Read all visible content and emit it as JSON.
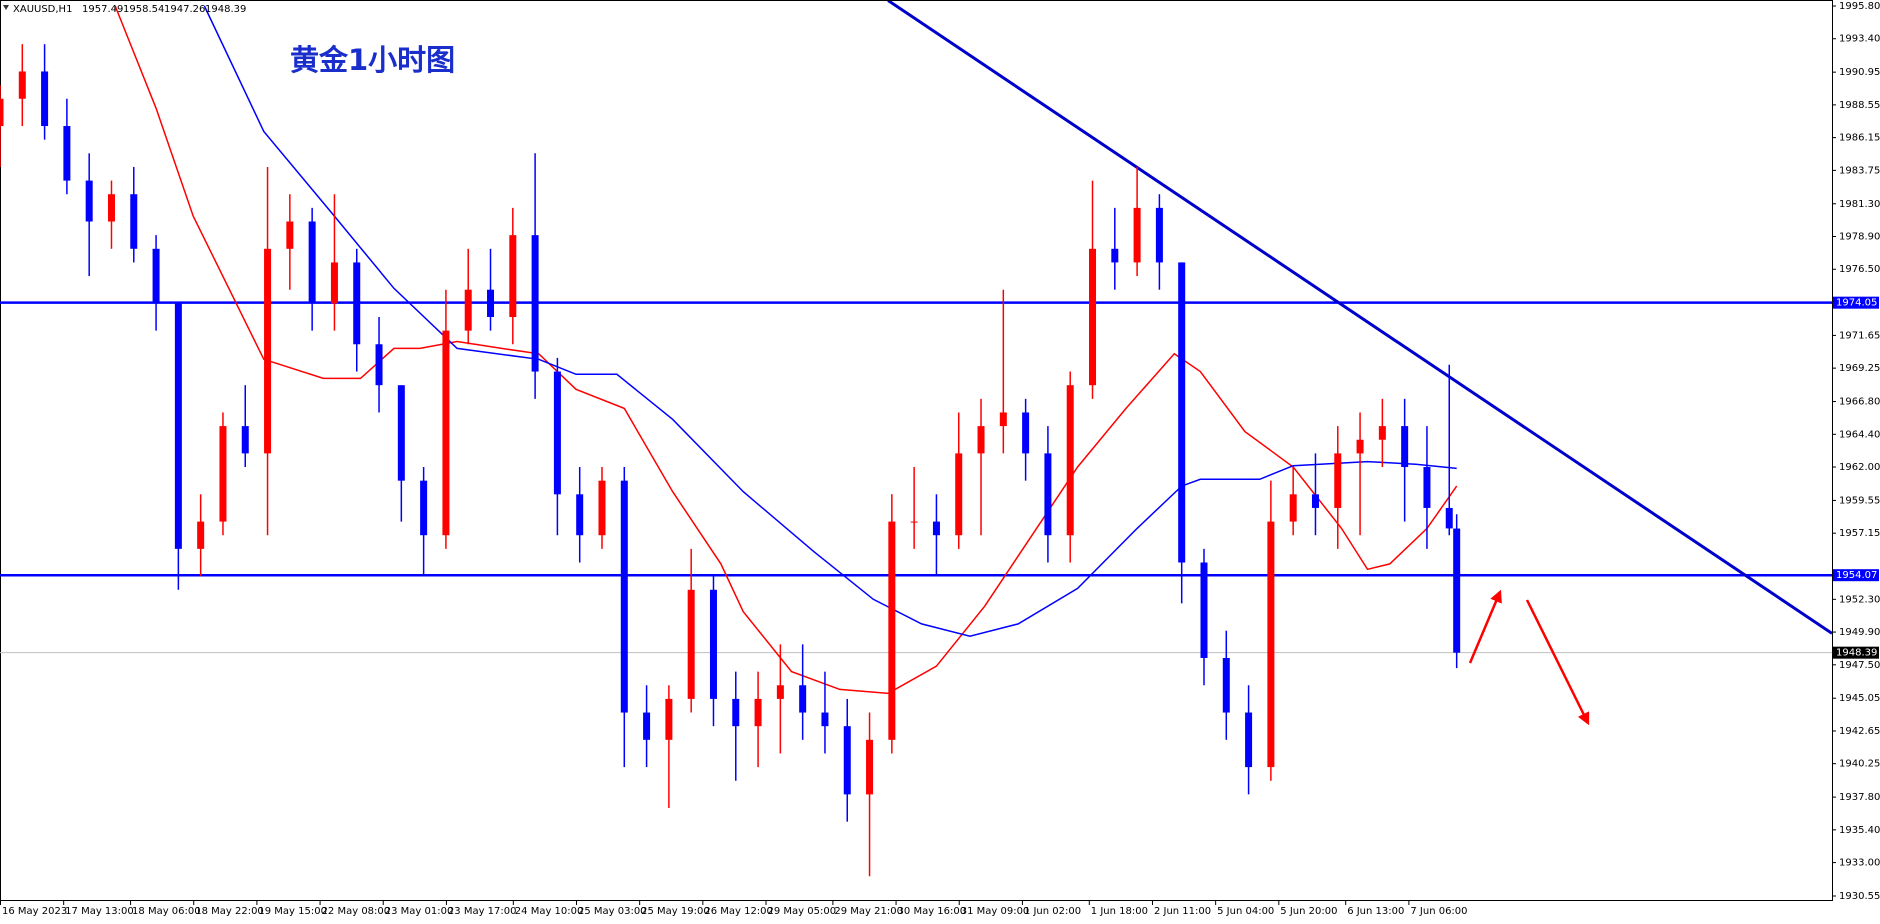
{
  "chart_data": {
    "type": "candlestick",
    "symbol": "XAUUSD,H1",
    "title": "黄金1小时图",
    "up_color": "#ff0000",
    "down_color": "#0000ff",
    "xlim": [
      0,
      493
    ],
    "ylim": [
      1930.55,
      1995.8
    ],
    "xticks": [
      {
        "value": 0,
        "label": "16 May 2023"
      },
      {
        "value": 17,
        "label": "17 May 13:00"
      },
      {
        "value": 35,
        "label": "18 May 06:00"
      },
      {
        "value": 52,
        "label": "18 May 22:00"
      },
      {
        "value": 69,
        "label": "19 May 15:00"
      },
      {
        "value": 86,
        "label": "22 May 08:00"
      },
      {
        "value": 103,
        "label": "23 May 01:00"
      },
      {
        "value": 120,
        "label": "23 May 17:00"
      },
      {
        "value": 138,
        "label": "24 May 10:00"
      },
      {
        "value": 155,
        "label": "25 May 03:00"
      },
      {
        "value": 172,
        "label": "25 May 19:00"
      },
      {
        "value": 189,
        "label": "26 May 12:00"
      },
      {
        "value": 206,
        "label": "29 May 05:00"
      },
      {
        "value": 224,
        "label": "29 May 21:00"
      },
      {
        "value": 241,
        "label": "30 May 16:00"
      },
      {
        "value": 258,
        "label": "31 May 09:00"
      },
      {
        "value": 275,
        "label": "1 Jun 02:00"
      },
      {
        "value": 293,
        "label": "1 Jun 18:00"
      },
      {
        "value": 310,
        "label": "2 Jun 11:00"
      },
      {
        "value": 327,
        "label": "5 Jun 04:00"
      },
      {
        "value": 344,
        "label": "5 Jun 20:00"
      },
      {
        "value": 362,
        "label": "6 Jun 13:00"
      },
      {
        "value": 379,
        "label": "7 Jun 06:00"
      }
    ],
    "yticks": [
      {
        "value": 1995.8,
        "label": "1995.80"
      },
      {
        "value": 1993.4,
        "label": "1993.40"
      },
      1990.95,
      1988.55,
      1986.15,
      1983.75,
      {
        "value": 1981.3,
        "label": "1981.30"
      },
      {
        "value": 1978.9,
        "label": "1978.90"
      },
      {
        "value": 1976.5,
        "label": "1976.50"
      },
      1971.65,
      1969.25,
      {
        "value": 1966.8,
        "label": "1966.80"
      },
      {
        "value": 1964.4,
        "label": "1964.40"
      },
      {
        "value": 1962,
        "label": "1962.00"
      },
      1959.55,
      1957.15,
      {
        "value": 1952.3,
        "label": "1952.30"
      },
      {
        "value": 1949.9,
        "label": "1949.90"
      },
      {
        "value": 1947.5,
        "label": "1947.50"
      },
      1945.05,
      1942.65,
      1940.25,
      {
        "value": 1937.8,
        "label": "1937.80"
      },
      {
        "value": 1935.4,
        "label": "1935.40"
      },
      {
        "value": 1933,
        "label": "1933.00"
      },
      1930.55
    ],
    "candles": {
      "x": [
        0,
        6,
        12,
        18,
        24,
        30,
        36,
        42,
        48,
        54,
        60,
        66,
        72,
        78,
        84,
        90,
        96,
        102,
        108,
        114,
        120,
        126,
        132,
        138,
        144,
        150,
        156,
        162,
        168,
        174,
        180,
        186,
        192,
        198,
        204,
        210,
        216,
        222,
        228,
        234,
        240,
        246,
        252,
        258,
        264,
        270,
        276,
        282,
        288,
        294,
        300,
        306,
        312,
        318,
        324,
        330,
        336,
        342,
        348,
        354,
        360,
        366,
        372,
        378,
        384,
        390,
        392
      ],
      "open": [
        1987,
        1989,
        1991,
        1987,
        1983,
        1980,
        1982,
        1978,
        1974,
        1956,
        1958,
        1965,
        1963,
        1978,
        1980,
        1974,
        1977,
        1971,
        1968,
        1961,
        1957,
        1972,
        1975,
        1973,
        1979,
        1969,
        1960,
        1957,
        1961,
        1944,
        1942,
        1945,
        1953,
        1945,
        1943,
        1945,
        1946,
        1944,
        1943,
        1938,
        1942,
        1958,
        1958,
        1957,
        1963,
        1965,
        1966,
        1963,
        1957,
        1968,
        1978,
        1977,
        1981,
        1977,
        1955,
        1948,
        1944,
        1940,
        1958,
        1960,
        1959,
        1963,
        1964,
        1965,
        1962,
        1959,
        1957.49
      ],
      "high": [
        1990,
        1993,
        1993,
        1989,
        1985,
        1983,
        1984,
        1979,
        1974,
        1960,
        1966,
        1968,
        1984,
        1982,
        1981,
        1982,
        1978,
        1973,
        1968,
        1962,
        1975,
        1978,
        1978,
        1981,
        1985,
        1970,
        1962,
        1962,
        1962,
        1946,
        1946,
        1956,
        1954,
        1947,
        1947,
        1949,
        1949,
        1947,
        1945,
        1944,
        1960,
        1962,
        1960,
        1966,
        1967,
        1975,
        1967,
        1965,
        1969,
        1983,
        1981,
        1984,
        1982,
        1977,
        1956,
        1950,
        1946,
        1961,
        1962,
        1963,
        1965,
        1966,
        1967,
        1967,
        1965,
        1969.5,
        1958.54
      ],
      "low": [
        1984,
        1987,
        1986,
        1982,
        1976,
        1978,
        1977,
        1972,
        1953,
        1954,
        1957,
        1962,
        1957,
        1975,
        1972,
        1972,
        1969,
        1966,
        1958,
        1954,
        1956,
        1971,
        1972,
        1971,
        1967,
        1957,
        1955,
        1956,
        1940,
        1940,
        1937,
        1944,
        1943,
        1939,
        1940,
        1941,
        1942,
        1941,
        1936,
        1932,
        1941,
        1956,
        1954,
        1956,
        1957,
        1963,
        1961,
        1955,
        1955,
        1967,
        1975,
        1976,
        1975,
        1952,
        1946,
        1942,
        1938,
        1939,
        1957,
        1957,
        1956,
        1957,
        1962,
        1958,
        1956,
        1957,
        1947.26
      ],
      "close": [
        1989,
        1991,
        1987,
        1983,
        1980,
        1982,
        1978,
        1974,
        1956,
        1958,
        1965,
        1963,
        1978,
        1980,
        1974,
        1977,
        1971,
        1968,
        1961,
        1957,
        1972,
        1975,
        1973,
        1979,
        1969,
        1960,
        1957,
        1961,
        1944,
        1942,
        1945,
        1953,
        1945,
        1943,
        1945,
        1946,
        1944,
        1943,
        1938,
        1942,
        1958,
        1958,
        1957,
        1963,
        1965,
        1966,
        1963,
        1957,
        1968,
        1978,
        1977,
        1981,
        1977,
        1955,
        1948,
        1944,
        1940,
        1958,
        1960,
        1959,
        1963,
        1964,
        1965,
        1962,
        1959,
        1957.5,
        1948.39
      ]
    },
    "series": [
      {
        "color": "#ff0000",
        "x": [
          31,
          42,
          52,
          71,
          87,
          97,
          106,
          113,
          123,
          135,
          145,
          155,
          168,
          181,
          194,
          200,
          213,
          226,
          239,
          252,
          265,
          277,
          290,
          303,
          316,
          323,
          335,
          348,
          361,
          368,
          374,
          384,
          392
        ],
        "values": [
          1995.8,
          1988.3,
          1980.4,
          1969.9,
          1968.5,
          1968.5,
          1970.7,
          1970.7,
          1971.2,
          1970.7,
          1970.3,
          1967.7,
          1966.3,
          1960.2,
          1954.9,
          1951.4,
          1947.0,
          1945.7,
          1945.4,
          1947.4,
          1951.8,
          1956.7,
          1962.0,
          1966.3,
          1970.3,
          1969.0,
          1964.6,
          1962.0,
          1957.5,
          1954.5,
          1954.9,
          1957.5,
          1960.6
        ]
      },
      {
        "color": "#0000ff",
        "x": [
          55,
          71,
          90,
          106,
          123,
          145,
          155,
          166,
          181,
          200,
          219,
          235,
          248,
          261,
          274,
          290,
          306,
          318,
          323,
          339,
          348,
          368,
          381,
          392
        ],
        "values": [
          1995.8,
          1986.6,
          1980.4,
          1975.1,
          1970.7,
          1969.9,
          1968.8,
          1968.8,
          1965.5,
          1960.2,
          1955.8,
          1952.3,
          1950.5,
          1949.6,
          1950.5,
          1953.1,
          1957.5,
          1960.6,
          1961.1,
          1961.1,
          1962.1,
          1962.4,
          1962.2,
          1961.9
        ]
      }
    ],
    "trendlines": [
      {
        "color": "#0000cd",
        "x": [
          239,
          493
        ],
        "values": [
          1996.2,
          1949.8
        ]
      }
    ],
    "hlines": [
      {
        "value": 1974.05,
        "color": "#0000ff"
      },
      {
        "value": 1954.07,
        "color": "#0000ff"
      },
      {
        "value": 1948.39,
        "color": "#c0c0c0"
      }
    ]
  }
}
